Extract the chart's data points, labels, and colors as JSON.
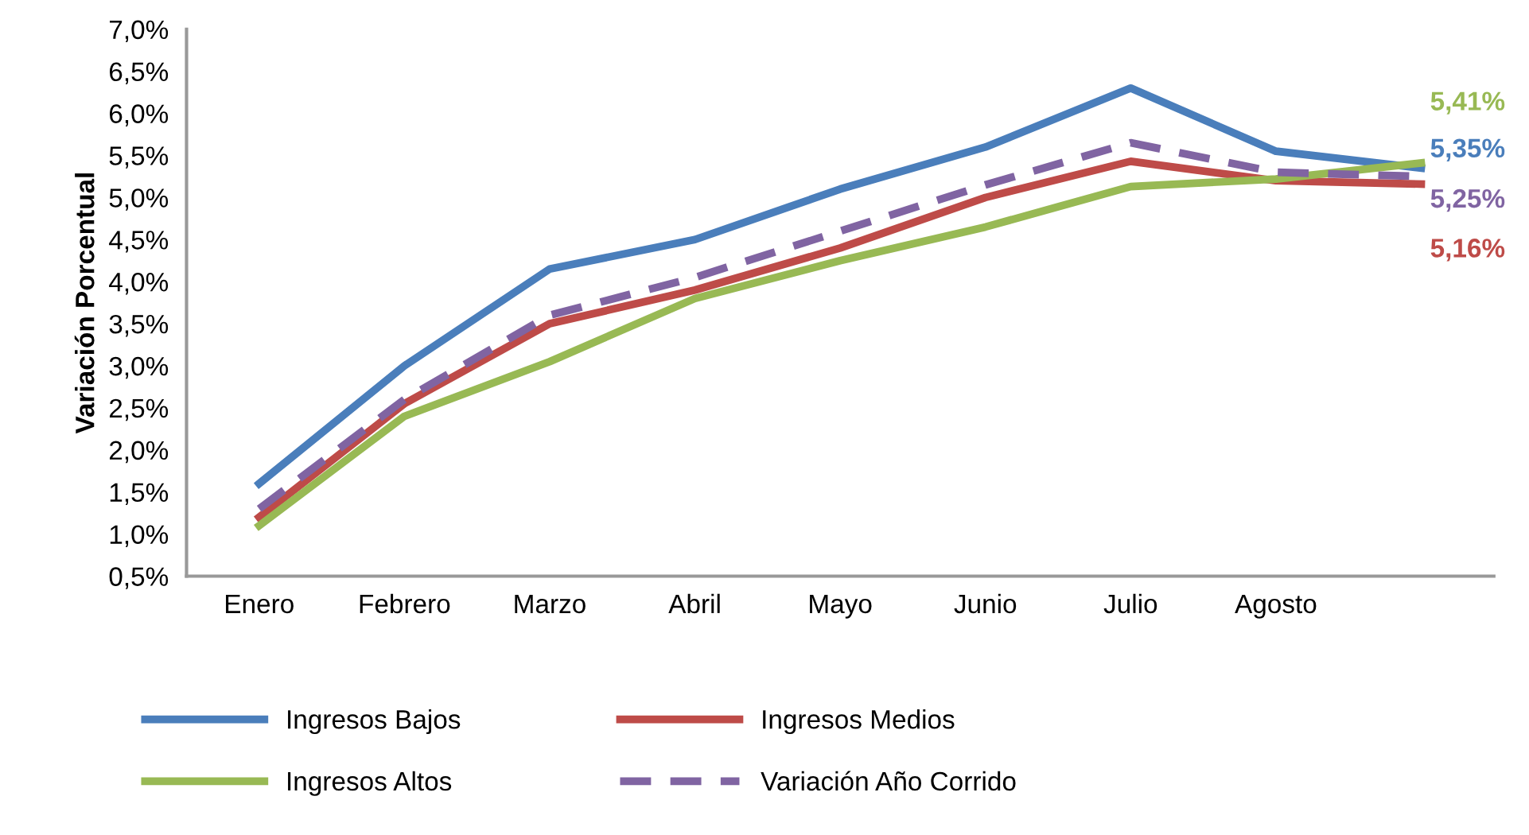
{
  "chart_data": {
    "type": "line",
    "ylabel": "Variación Porcentual",
    "categories": [
      "Enero",
      "Febrero",
      "Marzo",
      "Abril",
      "Mayo",
      "Junio",
      "Julio",
      "Agosto",
      null
    ],
    "series": [
      {
        "name": "Ingresos Bajos",
        "color": "#4a7ebb",
        "values": [
          1.6,
          3.0,
          4.15,
          4.5,
          5.1,
          5.6,
          6.3,
          5.55,
          5.35
        ],
        "value_labels": [
          null,
          null,
          null,
          null,
          null,
          null,
          null,
          null,
          "5,35%"
        ]
      },
      {
        "name": "Ingresos Medios",
        "color": "#be4b48",
        "values": [
          1.2,
          2.55,
          3.5,
          3.9,
          4.4,
          5.0,
          5.43,
          5.2,
          5.16
        ],
        "value_labels": [
          null,
          null,
          null,
          null,
          null,
          null,
          null,
          null,
          "5,16%"
        ]
      },
      {
        "name": "Ingresos Altos",
        "color": "#98b954",
        "values": [
          1.1,
          2.4,
          3.05,
          3.8,
          4.25,
          4.65,
          5.13,
          5.22,
          5.41
        ],
        "value_labels": [
          null,
          null,
          null,
          null,
          null,
          null,
          null,
          null,
          "5,41%"
        ]
      },
      {
        "name": "Variación Año Corrido",
        "color": "#8064a2",
        "line_style": "dashed",
        "values": [
          1.3,
          2.6,
          3.6,
          4.05,
          4.6,
          5.15,
          5.65,
          5.3,
          5.25
        ],
        "value_labels": [
          null,
          null,
          null,
          null,
          null,
          null,
          null,
          null,
          "5,25%"
        ]
      }
    ],
    "ylim": [
      0.5,
      7.0
    ],
    "yticks": [
      {
        "value": 0.5,
        "label": "0,5%"
      },
      {
        "value": 1.0,
        "label": "1,0%"
      },
      {
        "value": 1.5,
        "label": "1,5%"
      },
      {
        "value": 2.0,
        "label": "2,0%"
      },
      {
        "value": 2.5,
        "label": "2,5%"
      },
      {
        "value": 3.0,
        "label": "3,0%"
      },
      {
        "value": 3.5,
        "label": "3,5%"
      },
      {
        "value": 4.0,
        "label": "4,0%"
      },
      {
        "value": 4.5,
        "label": "4,5%"
      },
      {
        "value": 5.0,
        "label": "5,0%"
      },
      {
        "value": 5.5,
        "label": "5,5%"
      },
      {
        "value": 6.0,
        "label": "6,0%"
      },
      {
        "value": 6.5,
        "label": "6,5%"
      },
      {
        "value": 7.0,
        "label": "7,0%"
      }
    ],
    "grid": false,
    "legend": "bottom",
    "marker": "none"
  }
}
